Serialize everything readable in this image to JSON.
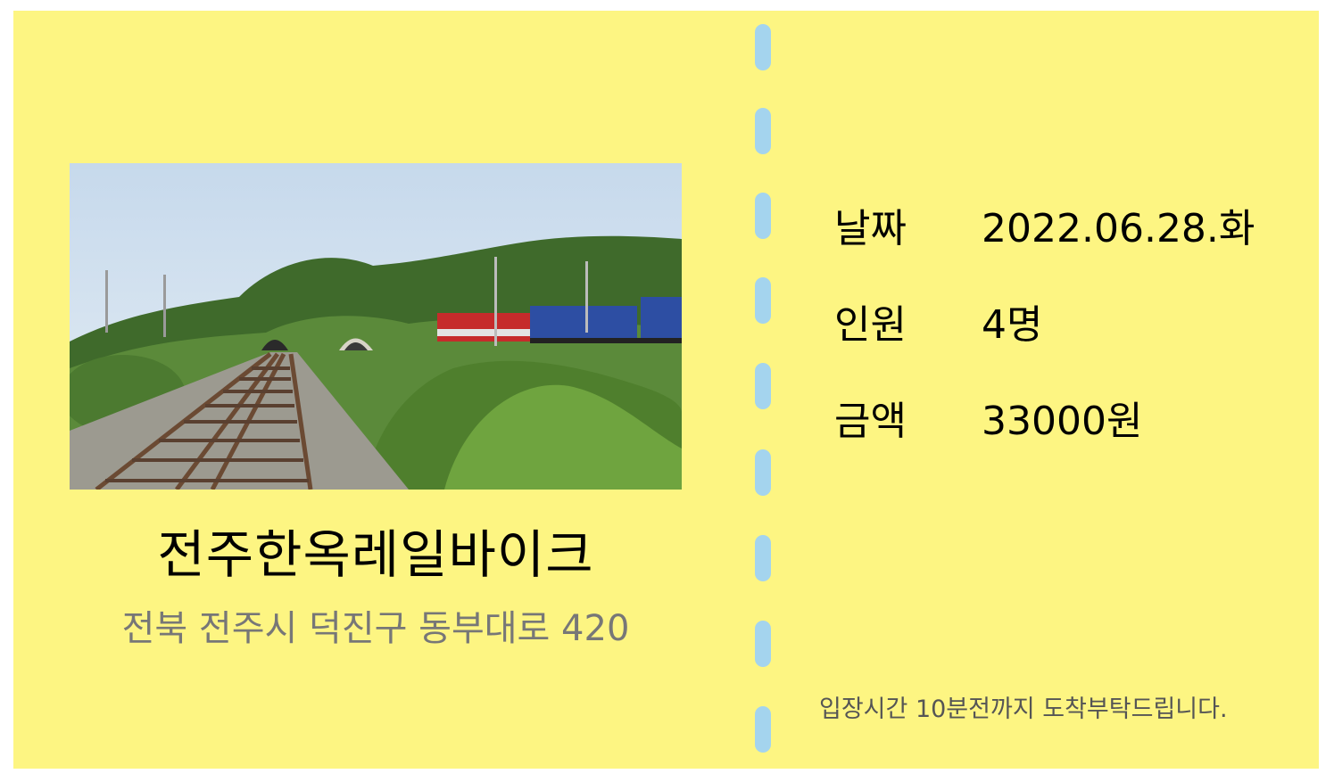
{
  "ticket": {
    "venue_name": "전주한옥레일바이크",
    "venue_address": "전북 전주시 덕진구 동부대로 420",
    "photo_icon": "railway-landscape-photo",
    "details": [
      {
        "label": "날짜",
        "value": "2022.06.28.화"
      },
      {
        "label": "인원",
        "value": "4명"
      },
      {
        "label": "금액",
        "value": "33000원"
      }
    ],
    "notice": "입장시간 10분전까지 도착부탁드립니다.",
    "colors": {
      "ticket_background": "#fdf582",
      "perforation": "#a4d4ee",
      "address_text": "#777777"
    }
  }
}
